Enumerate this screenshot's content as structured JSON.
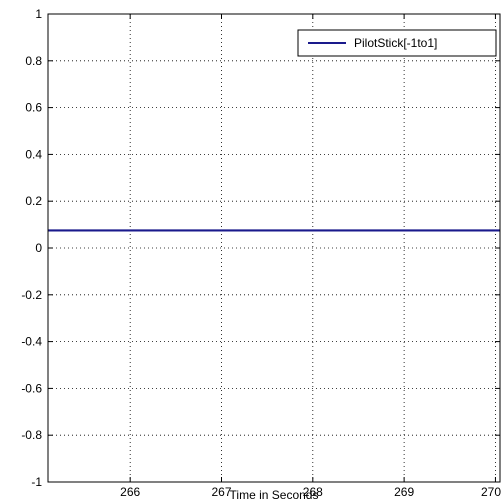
{
  "chart_data": {
    "type": "line",
    "title": "",
    "xlabel": "Time in Seconds",
    "ylabel": "",
    "xlim": [
      265.1,
      270.05
    ],
    "ylim": [
      -1,
      1
    ],
    "x_ticks": [
      266,
      267,
      268,
      269,
      270
    ],
    "x_tick_labels": [
      "266",
      "267",
      "268",
      "269",
      "270"
    ],
    "y_ticks": [
      -1,
      -0.8,
      -0.6,
      -0.4,
      -0.2,
      0,
      0.2,
      0.4,
      0.6,
      0.8,
      1
    ],
    "y_tick_labels": [
      "-1",
      "-0.8",
      "-0.6",
      "-0.4",
      "-0.2",
      "0",
      "0.2",
      "0.4",
      "0.6",
      "0.8",
      "1"
    ],
    "grid": true,
    "legend_position": "top-right",
    "series": [
      {
        "name": "PilotStick[-1to1]",
        "color": "#1a1a8c",
        "x": [
          265.1,
          270.05
        ],
        "y": [
          0.075,
          0.075
        ]
      }
    ]
  }
}
